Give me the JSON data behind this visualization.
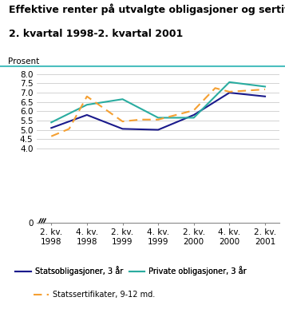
{
  "title_line1": "Effektive renter på utvalgte obligasjoner og sertifikater.",
  "title_line2": "2. kvartal 1998-2. kvartal 2001",
  "ylabel": "Prosent",
  "xtick_labels": [
    "2. kv.\n1998",
    "4. kv.\n1998",
    "2. kv.\n1999",
    "4. kv.\n1999",
    "2. kv.\n2000",
    "4. kv.\n2000",
    "2. kv.\n2001"
  ],
  "statsob_x": [
    0,
    1,
    2,
    3,
    4,
    5,
    6
  ],
  "statsob_y": [
    5.1,
    5.8,
    5.05,
    5.0,
    5.8,
    7.0,
    6.8
  ],
  "private_x": [
    0,
    1,
    2,
    3,
    4,
    5,
    6
  ],
  "private_y": [
    5.4,
    6.35,
    6.65,
    5.65,
    5.65,
    7.57,
    7.33
  ],
  "statssert_x": [
    0,
    0.5,
    1,
    2,
    2.5,
    3,
    4,
    4.6,
    5,
    6
  ],
  "statssert_y": [
    4.65,
    5.05,
    6.8,
    5.45,
    5.55,
    5.55,
    6.05,
    7.25,
    7.05,
    7.18
  ],
  "color_statsob": "#1a1a8c",
  "color_private": "#2aaca0",
  "color_statssert": "#f5a032",
  "legend_statsob": "Statsobligasjoner, 3 år",
  "legend_private": "Private obligasjoner, 3 år",
  "legend_statssert": "Statssertifikater, 9-12 md.",
  "yticks": [
    0,
    4.0,
    4.5,
    5.0,
    5.5,
    6.0,
    6.5,
    7.0,
    7.5,
    8.0
  ],
  "ylim": [
    0,
    8.0
  ],
  "title_fontsize": 9.0,
  "label_fontsize": 7.5,
  "legend_fontsize": 7.0,
  "bg_color": "#ffffff",
  "header_line_color": "#4bbfbf"
}
